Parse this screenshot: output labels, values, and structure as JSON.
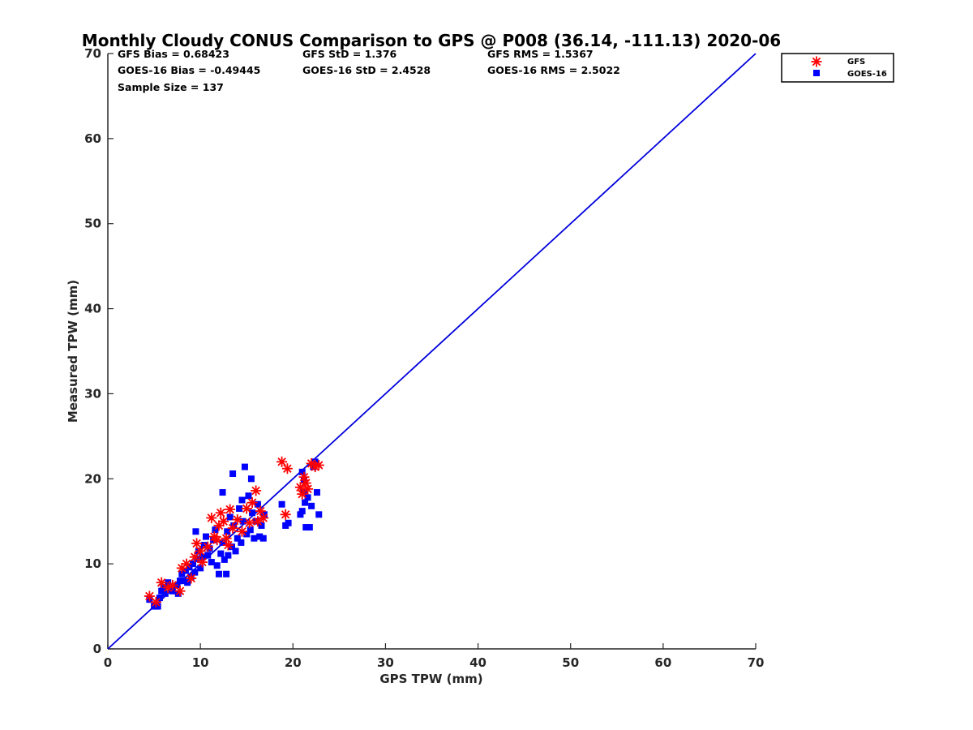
{
  "chart_data": {
    "type": "scatter",
    "title": "Monthly Cloudy CONUS Comparison to GPS @ P008 (36.14, -111.13) 2020-06",
    "xlabel": "GPS TPW (mm)",
    "ylabel": "Measured TPW (mm)",
    "xlim": [
      0,
      70
    ],
    "ylim": [
      0,
      70
    ],
    "xticks": [
      "0",
      "10",
      "20",
      "30",
      "40",
      "50",
      "60",
      "70"
    ],
    "yticks": [
      "0",
      "10",
      "20",
      "30",
      "40",
      "50",
      "60",
      "70"
    ],
    "grid": false,
    "legend_position": "top-right, outside plot",
    "stats": [
      [
        "GFS Bias = 0.68423",
        "GFS StD = 1.376",
        "GFS RMS = 1.5367"
      ],
      [
        "GOES-16 Bias = -0.49445",
        "GOES-16 StD = 2.4528",
        "GOES-16 RMS = 2.5022"
      ],
      [
        "Sample Size = 137"
      ]
    ],
    "reference_line": {
      "x": [
        0,
        70
      ],
      "y": [
        0,
        70
      ],
      "color": "#0000dd"
    },
    "series": [
      {
        "name": "GOES-16",
        "marker": "square",
        "color": "#0000ff",
        "points": [
          [
            4.5,
            5.8
          ],
          [
            5.0,
            5.0
          ],
          [
            5.2,
            5.2
          ],
          [
            5.4,
            5.0
          ],
          [
            5.6,
            6.0
          ],
          [
            5.8,
            6.8
          ],
          [
            6.0,
            7.2
          ],
          [
            6.2,
            6.5
          ],
          [
            6.5,
            7.8
          ],
          [
            6.8,
            7.0
          ],
          [
            7.0,
            6.8
          ],
          [
            7.5,
            7.5
          ],
          [
            7.6,
            6.5
          ],
          [
            7.8,
            8.0
          ],
          [
            8.0,
            8.8
          ],
          [
            8.2,
            8.0
          ],
          [
            8.4,
            9.2
          ],
          [
            8.6,
            7.8
          ],
          [
            8.8,
            9.6
          ],
          [
            9.0,
            8.5
          ],
          [
            9.2,
            10.0
          ],
          [
            9.4,
            9.0
          ],
          [
            9.5,
            13.8
          ],
          [
            9.6,
            10.6
          ],
          [
            9.8,
            11.5
          ],
          [
            10.0,
            9.5
          ],
          [
            10.2,
            10.8
          ],
          [
            10.4,
            12.2
          ],
          [
            10.6,
            13.2
          ],
          [
            10.8,
            11.0
          ],
          [
            11.0,
            11.8
          ],
          [
            11.2,
            10.2
          ],
          [
            11.4,
            12.8
          ],
          [
            11.6,
            14.0
          ],
          [
            11.8,
            9.8
          ],
          [
            12.0,
            8.8
          ],
          [
            12.2,
            11.2
          ],
          [
            12.4,
            12.5
          ],
          [
            12.6,
            10.5
          ],
          [
            12.8,
            8.8
          ],
          [
            12.4,
            18.4
          ],
          [
            12.9,
            13.8
          ],
          [
            13.0,
            11.0
          ],
          [
            13.2,
            15.5
          ],
          [
            13.4,
            12.0
          ],
          [
            13.5,
            20.6
          ],
          [
            13.6,
            14.5
          ],
          [
            13.8,
            11.5
          ],
          [
            14.0,
            13.0
          ],
          [
            14.2,
            16.5
          ],
          [
            14.4,
            12.5
          ],
          [
            14.5,
            17.5
          ],
          [
            14.6,
            15.0
          ],
          [
            14.8,
            21.4
          ],
          [
            15.0,
            13.5
          ],
          [
            15.2,
            18.0
          ],
          [
            15.4,
            14.0
          ],
          [
            15.5,
            20.0
          ],
          [
            15.6,
            16.0
          ],
          [
            15.8,
            13.0
          ],
          [
            16.0,
            15.0
          ],
          [
            16.2,
            17.0
          ],
          [
            16.4,
            13.2
          ],
          [
            16.6,
            14.5
          ],
          [
            16.8,
            13.0
          ],
          [
            16.9,
            15.8
          ],
          [
            18.8,
            17.0
          ],
          [
            19.2,
            14.5
          ],
          [
            19.5,
            14.8
          ],
          [
            20.8,
            15.8
          ],
          [
            21.0,
            16.2
          ],
          [
            21.2,
            18.5
          ],
          [
            21.3,
            17.2
          ],
          [
            21.4,
            14.3
          ],
          [
            21.6,
            17.8
          ],
          [
            21.8,
            14.3
          ],
          [
            22.0,
            16.8
          ],
          [
            22.2,
            21.4
          ],
          [
            22.4,
            22.0
          ],
          [
            22.6,
            18.4
          ],
          [
            22.8,
            15.8
          ],
          [
            21.0,
            20.8
          ],
          [
            21.2,
            19.8
          ]
        ]
      },
      {
        "name": "GFS",
        "marker": "asterisk",
        "color": "#ff0000",
        "points": [
          [
            4.5,
            6.2
          ],
          [
            5.2,
            5.5
          ],
          [
            5.8,
            7.8
          ],
          [
            6.5,
            7.2
          ],
          [
            7.0,
            7.5
          ],
          [
            7.8,
            6.8
          ],
          [
            8.0,
            9.5
          ],
          [
            8.5,
            10.0
          ],
          [
            9.0,
            8.3
          ],
          [
            9.4,
            10.8
          ],
          [
            9.6,
            12.4
          ],
          [
            10.0,
            11.5
          ],
          [
            10.2,
            10.2
          ],
          [
            10.8,
            12.0
          ],
          [
            11.2,
            15.4
          ],
          [
            11.5,
            13.2
          ],
          [
            11.8,
            12.8
          ],
          [
            12.0,
            14.5
          ],
          [
            12.2,
            16.0
          ],
          [
            12.5,
            15.0
          ],
          [
            12.8,
            13.0
          ],
          [
            13.0,
            12.2
          ],
          [
            13.2,
            16.4
          ],
          [
            13.5,
            14.2
          ],
          [
            14.0,
            15.2
          ],
          [
            14.5,
            13.8
          ],
          [
            15.0,
            16.5
          ],
          [
            15.3,
            14.8
          ],
          [
            15.6,
            17.2
          ],
          [
            16.0,
            18.6
          ],
          [
            16.2,
            15.0
          ],
          [
            16.5,
            16.2
          ],
          [
            16.8,
            15.4
          ],
          [
            18.8,
            22.0
          ],
          [
            19.4,
            21.2
          ],
          [
            19.2,
            15.8
          ],
          [
            20.8,
            19.0
          ],
          [
            21.0,
            18.2
          ],
          [
            21.2,
            20.2
          ],
          [
            21.4,
            19.5
          ],
          [
            21.6,
            18.8
          ],
          [
            22.0,
            21.8
          ],
          [
            22.4,
            21.4
          ],
          [
            22.8,
            21.6
          ]
        ]
      }
    ]
  }
}
